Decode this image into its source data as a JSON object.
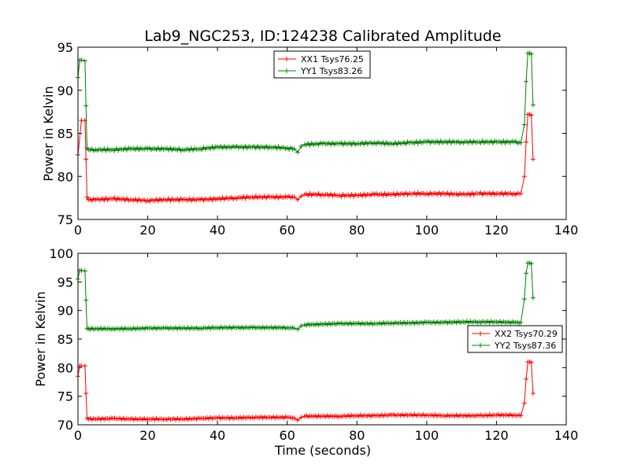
{
  "chart_data": [
    {
      "type": "line",
      "title": "Lab9_NGC253, ID:124238 Calibrated Amplitude",
      "xlabel": "",
      "ylabel": "Power in Kelvin",
      "xlim": [
        0,
        140
      ],
      "ylim": [
        75,
        95
      ],
      "xticks": [
        "0",
        "20",
        "40",
        "60",
        "80",
        "100",
        "120",
        "140"
      ],
      "yticks": [
        "75",
        "80",
        "85",
        "90",
        "95"
      ],
      "legend_position": "top-center",
      "grid": false,
      "series": [
        {
          "name": "XX1 Tsys76.25",
          "color": "#ff0000",
          "x": [
            0,
            1,
            2,
            2.3,
            2.6,
            3,
            5,
            10,
            15,
            20,
            25,
            30,
            35,
            40,
            45,
            50,
            55,
            60,
            62,
            63,
            64,
            65,
            70,
            75,
            80,
            85,
            90,
            95,
            100,
            105,
            110,
            115,
            120,
            125,
            127,
            128,
            128.5,
            129,
            129.5,
            130,
            130.5
          ],
          "y": [
            82.5,
            86.5,
            86.5,
            82,
            77.6,
            77.3,
            77.3,
            77.4,
            77.3,
            77.2,
            77.3,
            77.3,
            77.3,
            77.4,
            77.5,
            77.6,
            77.6,
            77.6,
            77.6,
            77.3,
            77.7,
            77.9,
            77.9,
            77.8,
            77.8,
            77.9,
            77.9,
            78.0,
            78.0,
            78.0,
            77.9,
            78.0,
            78.0,
            78.0,
            78.0,
            80,
            84,
            87.2,
            87.2,
            87.1,
            82
          ]
        },
        {
          "name": "YY1 Tsys83.26",
          "color": "#008000",
          "x": [
            0,
            0.5,
            1,
            2,
            2.3,
            2.6,
            3,
            5,
            10,
            15,
            20,
            25,
            30,
            35,
            40,
            45,
            50,
            55,
            60,
            62,
            63,
            64,
            65,
            70,
            75,
            80,
            85,
            90,
            95,
            100,
            105,
            110,
            115,
            120,
            125,
            127,
            128,
            128.5,
            129,
            129.5,
            130,
            130.5
          ],
          "y": [
            91.5,
            93.5,
            93.5,
            93.4,
            88.2,
            83.3,
            83.1,
            83.1,
            83.1,
            83.2,
            83.2,
            83.2,
            83.1,
            83.2,
            83.4,
            83.4,
            83.4,
            83.4,
            83.3,
            83.2,
            82.8,
            83.5,
            83.7,
            83.8,
            83.8,
            83.8,
            83.9,
            83.8,
            83.9,
            84.0,
            84.0,
            84.0,
            84.0,
            84.0,
            84.0,
            83.9,
            86,
            91,
            94.3,
            94.3,
            94.2,
            88.3
          ]
        }
      ]
    },
    {
      "type": "line",
      "title": "",
      "xlabel": "Time (seconds)",
      "ylabel": "Power in Kelvin",
      "xlim": [
        0,
        140
      ],
      "ylim": [
        70,
        100
      ],
      "xticks": [
        "0",
        "20",
        "40",
        "60",
        "80",
        "100",
        "120",
        "140"
      ],
      "yticks": [
        "70",
        "75",
        "80",
        "85",
        "90",
        "95",
        "100"
      ],
      "legend_position": "center-right",
      "grid": false,
      "series": [
        {
          "name": "XX2 Tsys70.29",
          "color": "#ff0000",
          "x": [
            0,
            0.5,
            1,
            2,
            2.3,
            2.6,
            3,
            5,
            10,
            15,
            20,
            25,
            30,
            35,
            40,
            45,
            50,
            55,
            60,
            62,
            63,
            64,
            65,
            70,
            75,
            80,
            85,
            90,
            95,
            100,
            105,
            110,
            115,
            120,
            125,
            127,
            128,
            128.5,
            129,
            129.5,
            130,
            130.5
          ],
          "y": [
            78.5,
            80.3,
            80.3,
            80.3,
            75.5,
            71.2,
            71.0,
            71.0,
            71.1,
            71.0,
            71.0,
            71.0,
            71.0,
            71.1,
            71.2,
            71.2,
            71.3,
            71.3,
            71.3,
            71.2,
            70.8,
            71.3,
            71.5,
            71.5,
            71.5,
            71.6,
            71.6,
            71.7,
            71.7,
            71.7,
            71.6,
            71.6,
            71.6,
            71.7,
            71.7,
            71.6,
            73.8,
            78,
            81.0,
            81.0,
            80.9,
            75.5
          ]
        },
        {
          "name": "YY2 Tsys87.36",
          "color": "#008000",
          "x": [
            0,
            0.5,
            1,
            2,
            2.3,
            2.6,
            3,
            5,
            10,
            15,
            20,
            25,
            30,
            35,
            40,
            45,
            50,
            55,
            60,
            62,
            63,
            64,
            65,
            70,
            75,
            80,
            85,
            90,
            95,
            100,
            105,
            110,
            115,
            120,
            125,
            127,
            128,
            128.5,
            129,
            129.5,
            130,
            130.5
          ],
          "y": [
            95.5,
            97.0,
            97.0,
            96.9,
            91.8,
            86.9,
            86.8,
            86.8,
            86.8,
            86.8,
            86.9,
            86.9,
            86.9,
            86.9,
            87.0,
            87.0,
            87.0,
            87.0,
            87.0,
            86.9,
            86.7,
            87.3,
            87.5,
            87.6,
            87.7,
            87.7,
            87.7,
            87.8,
            87.8,
            87.9,
            87.9,
            88.0,
            88.0,
            88.0,
            87.9,
            87.9,
            92,
            96.5,
            98.3,
            98.3,
            98.2,
            92.2
          ]
        }
      ]
    }
  ]
}
